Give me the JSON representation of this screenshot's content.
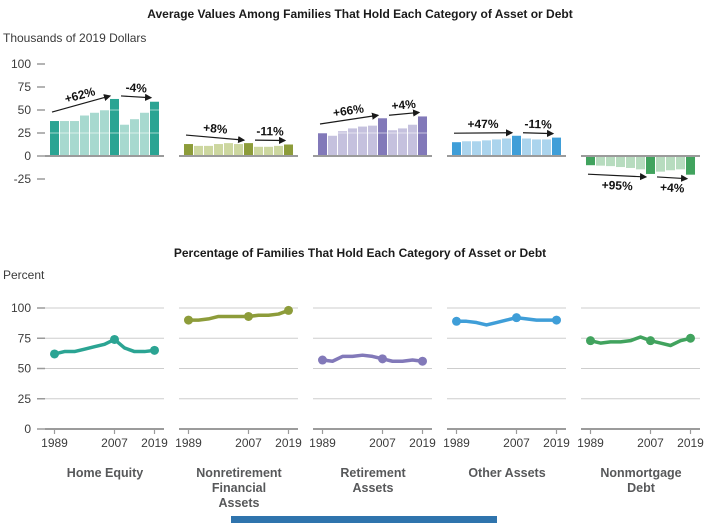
{
  "top_section": {
    "title": "Average Values Among Families That Hold Each Category of Asset or Debt",
    "unit_label": "Thousands of 2019 Dollars",
    "y_ticks": [
      100,
      75,
      50,
      25,
      0,
      -25
    ]
  },
  "bottom_section": {
    "title": "Percentage of Families That Hold Each Category of Asset or Debt",
    "unit_label": "Percent",
    "y_ticks": [
      100,
      75,
      50,
      25,
      0
    ],
    "x_tick_labels": [
      "1989",
      "2007",
      "2019"
    ]
  },
  "categories": [
    {
      "label": "Home Equity"
    },
    {
      "label": "Nonretirement\nFinancial\nAssets"
    },
    {
      "label": "Retirement\nAssets"
    },
    {
      "label": "Other Assets"
    },
    {
      "label": "Nonmortgage\nDebt"
    }
  ],
  "footer": {
    "blue_bar_color": "#2f74ad"
  },
  "chart_data": [
    {
      "type": "bar",
      "title": "Average Values Among Families That Hold Each Category of Asset or Debt",
      "ylabel": "Thousands of 2019 Dollars",
      "ylim": [
        -25,
        100
      ],
      "grid": false,
      "x": [
        1989,
        1992,
        1995,
        1998,
        2001,
        2004,
        2007,
        2010,
        2013,
        2016,
        2019
      ],
      "highlighted_x": [
        1989,
        2007,
        2019
      ],
      "series": [
        {
          "name": "Home Equity",
          "color_dark": "#2ba493",
          "color_light": "#a7d9cf",
          "values": [
            38,
            38,
            38,
            44,
            47,
            50,
            62,
            34,
            40,
            47,
            59
          ],
          "annotations": [
            "+62%",
            "-4%"
          ]
        },
        {
          "name": "Nonretirement Financial Assets",
          "color_dark": "#8d9c3a",
          "color_light": "#cdd7a0",
          "values": [
            13,
            11,
            11,
            13,
            14,
            13,
            14,
            10,
            10,
            11,
            12.5
          ],
          "annotations": [
            "+8%",
            "-11%"
          ]
        },
        {
          "name": "Retirement Assets",
          "color_dark": "#8279b9",
          "color_light": "#c5c1de",
          "values": [
            25,
            22,
            27,
            30,
            32,
            33,
            41,
            28,
            30,
            34,
            43
          ],
          "annotations": [
            "+66%",
            "+4%"
          ]
        },
        {
          "name": "Other Assets",
          "color_dark": "#3f9ed8",
          "color_light": "#abd4ed",
          "values": [
            15,
            16,
            16,
            17,
            18,
            19,
            22,
            19,
            18,
            18,
            20
          ],
          "annotations": [
            "+47%",
            "-11%"
          ]
        },
        {
          "name": "Nonmortgage Debt",
          "color_dark": "#41a35e",
          "color_light": "#b7dcbf",
          "values": [
            -10,
            -10.5,
            -11,
            -12,
            -13,
            -14.5,
            -19.5,
            -17,
            -15.5,
            -14.5,
            -20.3
          ],
          "annotations": [
            "+95%",
            "+4%"
          ]
        }
      ]
    },
    {
      "type": "line",
      "title": "Percentage of Families That Hold Each Category of Asset or Debt",
      "ylabel": "Percent",
      "ylim": [
        0,
        100
      ],
      "grid": true,
      "x": [
        1989,
        1992,
        1995,
        1998,
        2001,
        2004,
        2007,
        2010,
        2013,
        2016,
        2019
      ],
      "marker_x": [
        1989,
        2007,
        2019
      ],
      "series": [
        {
          "name": "Home Equity",
          "color": "#2ba493",
          "values": [
            62,
            64,
            64,
            66,
            68,
            70,
            74,
            67,
            64,
            64,
            65
          ]
        },
        {
          "name": "Nonretirement Financial Assets",
          "color": "#8d9c3a",
          "values": [
            90,
            90,
            91,
            93,
            93,
            93,
            93,
            94,
            94,
            95,
            98
          ]
        },
        {
          "name": "Retirement Assets",
          "color": "#8279b9",
          "values": [
            57,
            56,
            60,
            60,
            61,
            60,
            58,
            56,
            56,
            57,
            56
          ]
        },
        {
          "name": "Other Assets",
          "color": "#3f9ed8",
          "values": [
            89,
            89,
            88,
            86,
            88,
            90,
            92,
            91,
            90,
            90,
            90
          ]
        },
        {
          "name": "Nonmortgage Debt",
          "color": "#41a35e",
          "values": [
            73,
            71,
            72,
            72,
            73,
            76,
            73,
            71,
            69,
            73,
            75
          ]
        }
      ]
    }
  ]
}
